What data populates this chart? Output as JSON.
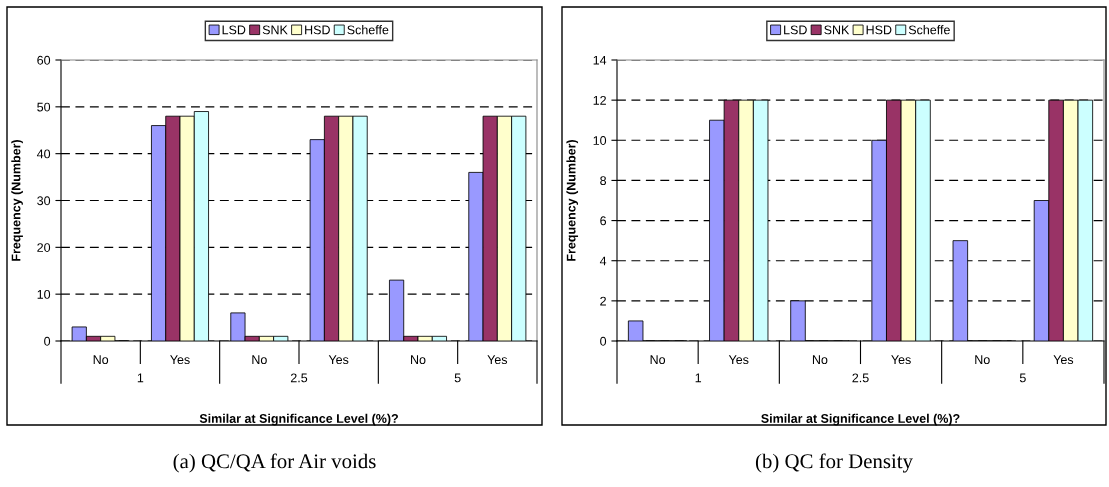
{
  "chart_data": [
    {
      "type": "bar",
      "title": "(a) QC/QA for Air voids",
      "xlabel": "Similar at Significance Level (%)?",
      "ylabel": "Frequency (Number)",
      "categories": [
        "No",
        "Yes",
        "No",
        "Yes",
        "No",
        "Yes"
      ],
      "annotations": [
        "1",
        "2.5",
        "5"
      ],
      "series": [
        {
          "name": "LSD",
          "color": "#9999ff",
          "values": [
            3,
            46,
            6,
            43,
            13,
            36
          ]
        },
        {
          "name": "SNK",
          "color": "#993366",
          "values": [
            1,
            48,
            1,
            48,
            1,
            48
          ]
        },
        {
          "name": "HSD",
          "color": "#ffffcc",
          "values": [
            1,
            48,
            1,
            48,
            1,
            48
          ]
        },
        {
          "name": "Scheffe",
          "color": "#ccffff",
          "values": [
            0,
            49,
            1,
            48,
            1,
            48
          ]
        }
      ],
      "ylim": [
        0,
        60
      ],
      "yticks": [
        0,
        10,
        20,
        30,
        40,
        50,
        60
      ],
      "grid": "y",
      "legend": "top"
    },
    {
      "type": "bar",
      "title": "(b) QC for Density",
      "xlabel": "Similar at Significance Level (%)?",
      "ylabel": "Frequency (Number)",
      "categories": [
        "No",
        "Yes",
        "No",
        "Yes",
        "No",
        "Yes"
      ],
      "annotations": [
        "1",
        "2.5",
        "5"
      ],
      "series": [
        {
          "name": "LSD",
          "color": "#9999ff",
          "values": [
            1,
            11,
            2,
            10,
            5,
            7
          ]
        },
        {
          "name": "SNK",
          "color": "#993366",
          "values": [
            0,
            12,
            0,
            12,
            0,
            12
          ]
        },
        {
          "name": "HSD",
          "color": "#ffffcc",
          "values": [
            0,
            12,
            0,
            12,
            0,
            12
          ]
        },
        {
          "name": "Scheffe",
          "color": "#ccffff",
          "values": [
            0,
            12,
            0,
            12,
            0,
            12
          ]
        }
      ],
      "ylim": [
        0,
        14
      ],
      "yticks": [
        0,
        2,
        4,
        6,
        8,
        10,
        12,
        14
      ],
      "grid": "y",
      "legend": "top"
    }
  ]
}
